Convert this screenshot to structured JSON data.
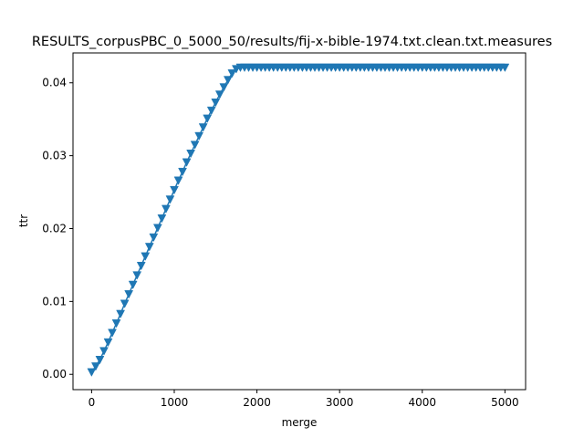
{
  "chart_data": {
    "type": "line",
    "title": "RESULTS_corpusPBC_0_5000_50/results/fij-x-bible-1974.txt.clean.txt.measures",
    "xlabel": "merge",
    "ylabel": "ttr",
    "xlim": [
      -225,
      5250
    ],
    "ylim": [
      -0.0021,
      0.0441
    ],
    "xticks": [
      0,
      1000,
      2000,
      3000,
      4000,
      5000
    ],
    "yticks": [
      0.0,
      0.01,
      0.02,
      0.03,
      0.04
    ],
    "ytick_labels": [
      "0.00",
      "0.01",
      "0.02",
      "0.03",
      "0.04"
    ],
    "grid": false,
    "marker": "triangle-down",
    "color": "#1f77b4",
    "series": [
      {
        "x": [
          0,
          50,
          100,
          150,
          200,
          250,
          300,
          350,
          400,
          450,
          500,
          550,
          600,
          650,
          700,
          750,
          800,
          850,
          900,
          950,
          1000,
          1050,
          1100,
          1150,
          1200,
          1250,
          1300,
          1350,
          1400,
          1450,
          1500,
          1550,
          1600,
          1650,
          1700,
          1750,
          1800,
          1850,
          1900,
          1950,
          2000,
          2050,
          2100,
          2150,
          2200,
          2250,
          2300,
          2350,
          2400,
          2450,
          2500,
          2550,
          2600,
          2650,
          2700,
          2750,
          2800,
          2850,
          2900,
          2950,
          3000,
          3050,
          3100,
          3150,
          3200,
          3250,
          3300,
          3350,
          3400,
          3450,
          3500,
          3550,
          3600,
          3650,
          3700,
          3750,
          3800,
          3850,
          3900,
          3950,
          4000,
          4050,
          4100,
          4150,
          4200,
          4250,
          4300,
          4350,
          4400,
          4450,
          4500,
          4550,
          4600,
          4650,
          4700,
          4750,
          4800,
          4850,
          4900,
          4950,
          5000
        ],
        "y": [
          0.0003,
          0.0011,
          0.002,
          0.0032,
          0.0044,
          0.0057,
          0.007,
          0.0083,
          0.0097,
          0.011,
          0.0123,
          0.0136,
          0.0149,
          0.0162,
          0.0175,
          0.0188,
          0.0201,
          0.0214,
          0.0227,
          0.024,
          0.0253,
          0.0266,
          0.0278,
          0.0291,
          0.0303,
          0.0315,
          0.0327,
          0.0339,
          0.0351,
          0.0362,
          0.0373,
          0.0384,
          0.0394,
          0.0404,
          0.0413,
          0.0419,
          0.0421,
          0.0421,
          0.0421,
          0.0421,
          0.0421,
          0.0421,
          0.0421,
          0.0421,
          0.0421,
          0.0421,
          0.0421,
          0.0421,
          0.0421,
          0.0421,
          0.0421,
          0.0421,
          0.0421,
          0.0421,
          0.0421,
          0.0421,
          0.0421,
          0.0421,
          0.0421,
          0.0421,
          0.0421,
          0.0421,
          0.0421,
          0.0421,
          0.0421,
          0.0421,
          0.0421,
          0.0421,
          0.0421,
          0.0421,
          0.0421,
          0.0421,
          0.0421,
          0.0421,
          0.0421,
          0.0421,
          0.0421,
          0.0421,
          0.0421,
          0.0421,
          0.0421,
          0.0421,
          0.0421,
          0.0421,
          0.0421,
          0.0421,
          0.0421,
          0.0421,
          0.0421,
          0.0421,
          0.0421,
          0.0421,
          0.0421,
          0.0421,
          0.0421,
          0.0421,
          0.0421,
          0.0421,
          0.0421,
          0.0421,
          0.0421
        ]
      }
    ]
  }
}
